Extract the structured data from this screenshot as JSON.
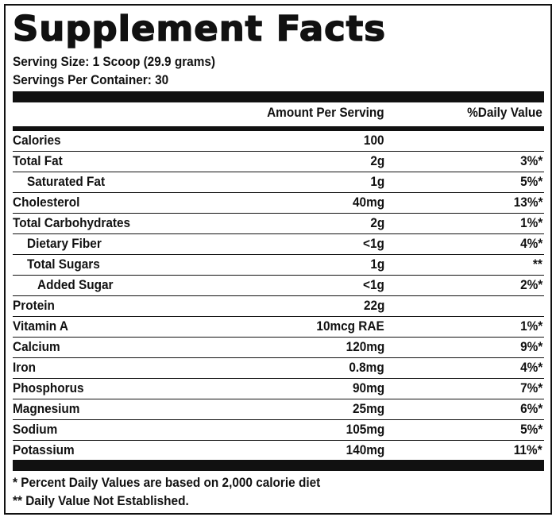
{
  "label": {
    "title": "Supplement Facts",
    "serving_size": "Serving Size: 1 Scoop (29.9 grams)",
    "servings_per_container": "Servings Per Container: 30",
    "header_amount": "Amount Per Serving",
    "header_dv": "%Daily Value"
  },
  "rows": [
    {
      "name": "Calories",
      "amount": "100",
      "dv": ""
    },
    {
      "name": "Total Fat",
      "amount": "2g",
      "dv": "3%*"
    },
    {
      "name": "Saturated Fat",
      "amount": "1g",
      "dv": "5%*"
    },
    {
      "name": "Cholesterol",
      "amount": "40mg",
      "dv": "13%*"
    },
    {
      "name": "Total Carbohydrates",
      "amount": "2g",
      "dv": "1%*"
    },
    {
      "name": "Dietary Fiber",
      "amount": "<1g",
      "dv": "4%*"
    },
    {
      "name": "Total Sugars",
      "amount": "1g",
      "dv": "**"
    },
    {
      "name": "Added Sugar",
      "amount": "<1g",
      "dv": "2%*"
    },
    {
      "name": "Protein",
      "amount": "22g",
      "dv": ""
    },
    {
      "name": "Vitamin A",
      "amount": "10mcg RAE",
      "dv": "1%*"
    },
    {
      "name": "Calcium",
      "amount": "120mg",
      "dv": "9%*"
    },
    {
      "name": "Iron",
      "amount": "0.8mg",
      "dv": "4%*"
    },
    {
      "name": "Phosphorus",
      "amount": "90mg",
      "dv": "7%*"
    },
    {
      "name": "Magnesium",
      "amount": "25mg",
      "dv": "6%*"
    },
    {
      "name": "Sodium",
      "amount": "105mg",
      "dv": "5%*"
    },
    {
      "name": "Potassium",
      "amount": "140mg",
      "dv": "11%*"
    }
  ],
  "footnotes": {
    "percent_note": "* Percent Daily Values are based on 2,000 calorie diet",
    "not_established": "** Daily Value Not Established."
  }
}
